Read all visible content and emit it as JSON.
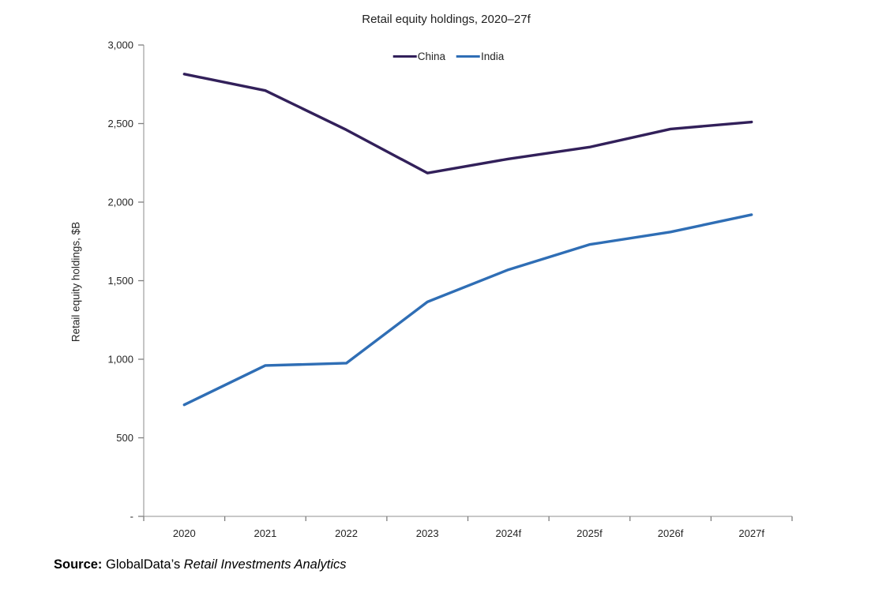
{
  "page": {
    "source": {
      "label": "Source:",
      "publisher": " GlobalData’s ",
      "product": "Retail Investments Analytics"
    }
  },
  "chart_data": {
    "type": "line",
    "title": "Retail equity holdings, 2020–27f",
    "ylabel": "Retail equity holdings, $B",
    "xlabel": "",
    "categories": [
      "2020",
      "2021",
      "2022",
      "2023",
      "2024f",
      "2025f",
      "2026f",
      "2027f"
    ],
    "series": [
      {
        "name": "China",
        "color": "#32205A",
        "values": [
          2815,
          2710,
          2460,
          2185,
          2275,
          2350,
          2465,
          2510
        ]
      },
      {
        "name": "India",
        "color": "#2F6EB5",
        "values": [
          710,
          960,
          975,
          1365,
          1570,
          1730,
          1810,
          1920
        ]
      }
    ],
    "ylim": [
      0,
      3000
    ],
    "y_ticks": [
      {
        "label": "3,000",
        "value": 3000
      },
      {
        "label": "2,500",
        "value": 2500
      },
      {
        "label": "2,000",
        "value": 2000
      },
      {
        "label": "1,500",
        "value": 1500
      },
      {
        "label": "1,000",
        "value": 1000
      },
      {
        "label": "500",
        "value": 500
      },
      {
        "label": "-",
        "value": 0
      }
    ],
    "grid": false,
    "legend_position": "top-center",
    "axis_color": "#A6A6A6",
    "tick_color": "#7F7F7F",
    "label_color": "#262626"
  }
}
